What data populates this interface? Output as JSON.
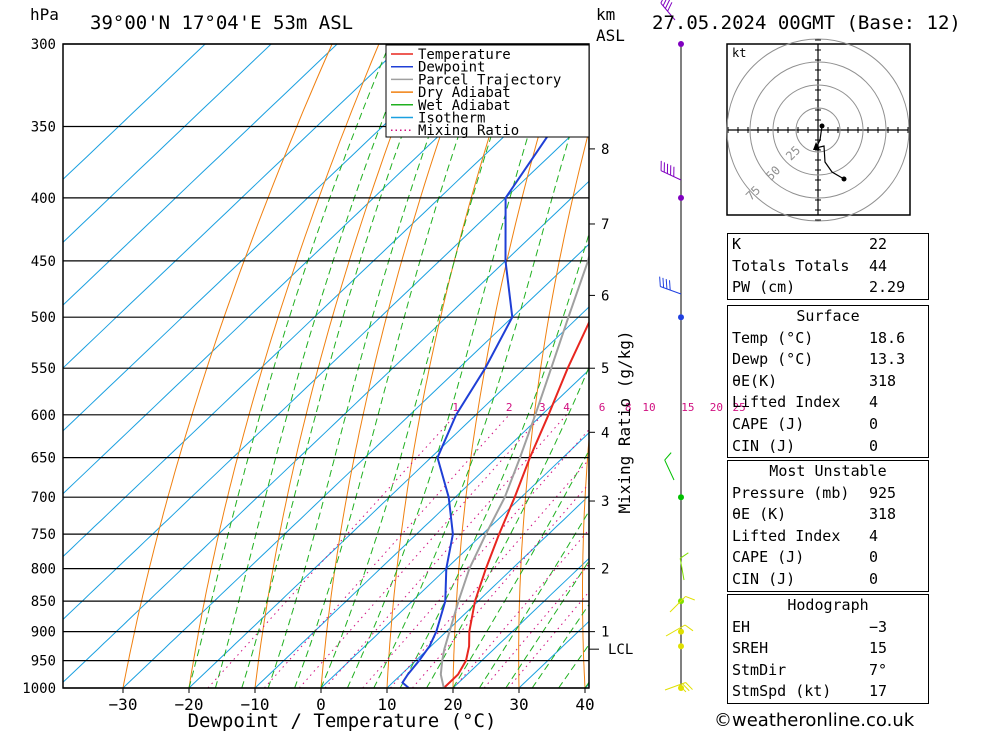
{
  "header": {
    "pressure_unit": "hPa",
    "location": "39°00'N  17°04'E  53m  ASL",
    "height_unit": "km",
    "height_unit2": "ASL",
    "datetime": "27.05.2024  00GMT  (Base: 12)"
  },
  "legend": {
    "items": [
      {
        "label": "Temperature",
        "color": "#e8261f",
        "style": "solid"
      },
      {
        "label": "Dewpoint",
        "color": "#1f3fd6",
        "style": "solid"
      },
      {
        "label": "Parcel Trajectory",
        "color": "#a0a0a0",
        "style": "solid"
      },
      {
        "label": "Dry Adiabat",
        "color": "#f08010",
        "style": "solid"
      },
      {
        "label": "Wet Adiabat",
        "color": "#20b020",
        "style": "solid"
      },
      {
        "label": "Isotherm",
        "color": "#1aa0e0",
        "style": "solid"
      },
      {
        "label": "Mixing Ratio",
        "color": "#d01080",
        "style": "dotted"
      }
    ]
  },
  "chart_data": {
    "type": "line",
    "xlabel": "Dewpoint / Temperature (°C)",
    "ylabel": "hPa",
    "xlim": [
      -40,
      40
    ],
    "ylim": [
      1000,
      300
    ],
    "pressure_levels": [
      300,
      350,
      400,
      450,
      500,
      550,
      600,
      650,
      700,
      750,
      800,
      850,
      900,
      950,
      1000
    ],
    "x_ticks": [
      -30,
      -20,
      -10,
      0,
      10,
      20,
      30,
      40
    ],
    "x_tick_labels": [
      "−30",
      "−20",
      "−10",
      "0",
      "10",
      "20",
      "30",
      "40"
    ],
    "km_ticks": [
      {
        "km": "1",
        "p": 900
      },
      {
        "km": "2",
        "p": 800
      },
      {
        "km": "3",
        "p": 705
      },
      {
        "km": "4",
        "p": 620
      },
      {
        "km": "5",
        "p": 550
      },
      {
        "km": "6",
        "p": 480
      },
      {
        "km": "7",
        "p": 420
      },
      {
        "km": "8",
        "p": 365
      }
    ],
    "lcl": {
      "label": "LCL",
      "p": 930
    },
    "mixing_ratio_axis_label": "Mixing Ratio (g/kg)",
    "mixing_ratio_labels": [
      "1",
      "2",
      "3",
      "4",
      "6",
      "8",
      "10",
      "15",
      "20",
      "25"
    ],
    "mixing_ratio_values": [
      1,
      2,
      3,
      4,
      6,
      8,
      10,
      15,
      20,
      25
    ],
    "series": [
      {
        "name": "Temperature",
        "color": "#e8261f",
        "points": [
          [
            1000,
            18.6
          ],
          [
            975,
            18.6
          ],
          [
            950,
            17.6
          ],
          [
            925,
            15.8
          ],
          [
            900,
            13.5
          ],
          [
            850,
            9.5
          ],
          [
            800,
            6.0
          ],
          [
            750,
            2.5
          ],
          [
            700,
            -1.0
          ],
          [
            650,
            -5.0
          ],
          [
            600,
            -9.0
          ],
          [
            550,
            -13.5
          ],
          [
            500,
            -18.0
          ],
          [
            450,
            -24.0
          ],
          [
            400,
            -31.0
          ],
          [
            350,
            -39.5
          ],
          [
            300,
            -47.0
          ]
        ]
      },
      {
        "name": "Dewpoint",
        "color": "#1f3fd6",
        "points": [
          [
            1000,
            13.3
          ],
          [
            990,
            11.5
          ],
          [
            975,
            11.0
          ],
          [
            950,
            10.5
          ],
          [
            925,
            9.8
          ],
          [
            900,
            8.5
          ],
          [
            850,
            5.0
          ],
          [
            800,
            0.0
          ],
          [
            750,
            -4.5
          ],
          [
            700,
            -11.0
          ],
          [
            650,
            -19.0
          ],
          [
            600,
            -23.0
          ],
          [
            550,
            -26.0
          ],
          [
            500,
            -30.0
          ],
          [
            450,
            -40.0
          ],
          [
            400,
            -50.0
          ],
          [
            350,
            -54.0
          ],
          [
            300,
            -62.0
          ]
        ]
      },
      {
        "name": "Parcel Trajectory",
        "color": "#a0a0a0",
        "points": [
          [
            1000,
            18.6
          ],
          [
            975,
            16.0
          ],
          [
            950,
            14.0
          ],
          [
            930,
            12.5
          ],
          [
            900,
            10.5
          ],
          [
            850,
            7.0
          ],
          [
            800,
            3.5
          ],
          [
            750,
            0.5
          ],
          [
            700,
            -2.5
          ],
          [
            650,
            -6.5
          ],
          [
            600,
            -11.0
          ],
          [
            550,
            -16.0
          ],
          [
            500,
            -21.5
          ],
          [
            450,
            -27.5
          ],
          [
            400,
            -35.0
          ],
          [
            350,
            -43.5
          ],
          [
            300,
            -53.0
          ]
        ]
      }
    ]
  },
  "hodograph": {
    "unit": "kt",
    "rings": [
      "25",
      "50",
      "75"
    ]
  },
  "wind_profile": {
    "dot_levels": [
      {
        "p": 300,
        "color": "#8000c0"
      },
      {
        "p": 400,
        "color": "#8000c0"
      },
      {
        "p": 500,
        "color": "#2040e0"
      },
      {
        "p": 700,
        "color": "#00c000"
      },
      {
        "p": 850,
        "color": "#80e000"
      },
      {
        "p": 900,
        "color": "#e0e000"
      },
      {
        "p": 925,
        "color": "#e0e000"
      },
      {
        "p": 1000,
        "color": "#e0e000"
      }
    ]
  },
  "indices": {
    "rows": [
      {
        "label": "K",
        "value": "22"
      },
      {
        "label": "Totals Totals",
        "value": "44"
      },
      {
        "label": "PW (cm)",
        "value": "2.29"
      }
    ]
  },
  "surface": {
    "title": "Surface",
    "rows": [
      {
        "label": "Temp (°C)",
        "value": "18.6"
      },
      {
        "label": "Dewp (°C)",
        "value": "13.3"
      },
      {
        "label": "θE(K)",
        "value": "318"
      },
      {
        "label": "Lifted Index",
        "value": "4"
      },
      {
        "label": "CAPE (J)",
        "value": "0"
      },
      {
        "label": "CIN (J)",
        "value": "0"
      }
    ]
  },
  "most_unstable": {
    "title": "Most Unstable",
    "rows": [
      {
        "label": "Pressure (mb)",
        "value": "925"
      },
      {
        "label": "θE (K)",
        "value": "318"
      },
      {
        "label": "Lifted Index",
        "value": "4"
      },
      {
        "label": "CAPE (J)",
        "value": "0"
      },
      {
        "label": "CIN (J)",
        "value": "0"
      }
    ]
  },
  "hodograph_table": {
    "title": "Hodograph",
    "rows": [
      {
        "label": "EH",
        "value": "−3"
      },
      {
        "label": "SREH",
        "value": "15"
      },
      {
        "label": "StmDir",
        "value": "7°"
      },
      {
        "label": "StmSpd (kt)",
        "value": "17"
      }
    ]
  },
  "credit": "©weatheronline.co.uk"
}
